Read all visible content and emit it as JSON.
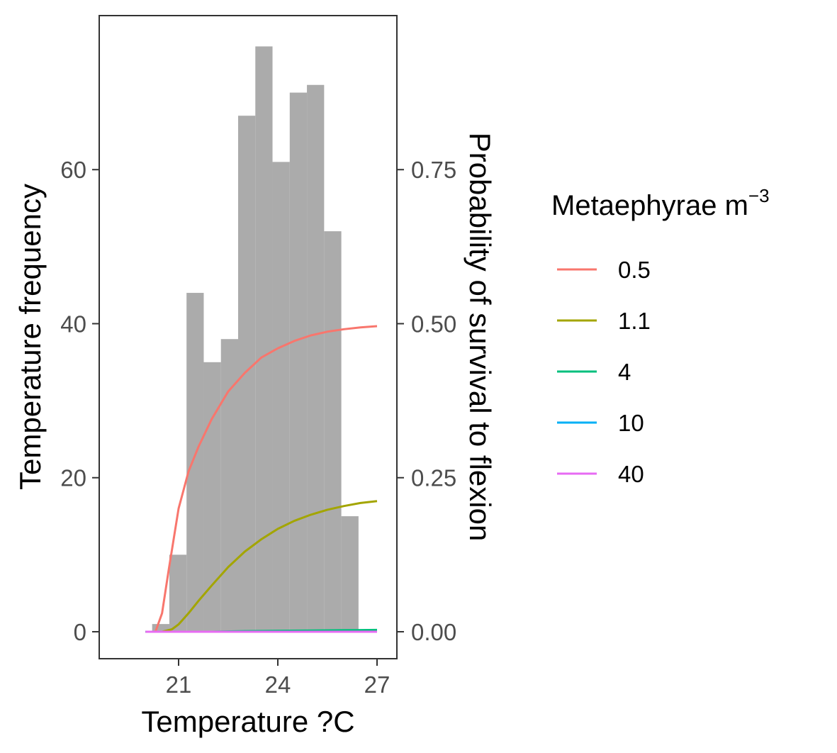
{
  "chart_data": {
    "type": "bar",
    "xlabel": "Temperature ?C",
    "ylabel_left": "Temperature frequency",
    "ylabel_right": "Probability of survival to flexion",
    "xlim": [
      18.6,
      27.6
    ],
    "ylim_left": [
      -3.5,
      80
    ],
    "ylim_right": [
      -0.04375,
      1.0
    ],
    "x_ticks": [
      21,
      24,
      27
    ],
    "x_tick_labels": [
      "21",
      "24",
      "27"
    ],
    "y_left_ticks": [
      0,
      20,
      40,
      60
    ],
    "y_left_tick_labels": [
      "0",
      "20",
      "40",
      "60"
    ],
    "y_right_ticks": [
      0,
      0.25,
      0.5,
      0.75
    ],
    "y_right_tick_labels": [
      "0.00",
      "0.25",
      "0.50",
      "0.75"
    ],
    "grid": false,
    "histogram": {
      "color": "#ababab",
      "bin_width": 0.52,
      "bins": [
        {
          "x": 20.46,
          "count": 1
        },
        {
          "x": 20.98,
          "count": 10
        },
        {
          "x": 21.5,
          "count": 44
        },
        {
          "x": 22.02,
          "count": 35
        },
        {
          "x": 22.54,
          "count": 38
        },
        {
          "x": 23.06,
          "count": 67
        },
        {
          "x": 23.58,
          "count": 76
        },
        {
          "x": 24.1,
          "count": 61
        },
        {
          "x": 24.62,
          "count": 70
        },
        {
          "x": 25.14,
          "count": 71
        },
        {
          "x": 25.66,
          "count": 52
        },
        {
          "x": 26.18,
          "count": 15
        }
      ]
    },
    "legend": {
      "title_main": "Metaephyrae m",
      "title_sup": "−3",
      "placement": "right"
    },
    "series": [
      {
        "name": "0.5",
        "color": "#f8766d",
        "x": [
          20.0,
          20.3,
          20.5,
          20.7,
          21.0,
          21.3,
          21.6,
          22.0,
          22.5,
          23.0,
          23.5,
          24.0,
          24.5,
          25.0,
          25.5,
          26.0,
          26.5,
          27.0
        ],
        "y": [
          0.0,
          0.0,
          0.03,
          0.1,
          0.2,
          0.26,
          0.3,
          0.345,
          0.39,
          0.42,
          0.445,
          0.46,
          0.472,
          0.481,
          0.487,
          0.491,
          0.494,
          0.496
        ]
      },
      {
        "name": "1.1",
        "color": "#a3a500",
        "x": [
          20.0,
          20.5,
          20.8,
          21.0,
          21.3,
          21.6,
          22.0,
          22.5,
          23.0,
          23.5,
          24.0,
          24.5,
          25.0,
          25.5,
          26.0,
          26.5,
          27.0
        ],
        "y": [
          0.0,
          0.0,
          0.004,
          0.012,
          0.03,
          0.05,
          0.075,
          0.105,
          0.13,
          0.15,
          0.167,
          0.18,
          0.19,
          0.198,
          0.204,
          0.209,
          0.212
        ]
      },
      {
        "name": "4",
        "color": "#00bf7d",
        "x": [
          20.0,
          22.0,
          23.0,
          24.0,
          25.0,
          26.0,
          27.0
        ],
        "y": [
          0.0,
          0.0,
          0.001,
          0.0015,
          0.002,
          0.0025,
          0.003
        ]
      },
      {
        "name": "10",
        "color": "#00b0f6",
        "x": [
          20.0,
          27.0
        ],
        "y": [
          0.0,
          0.0
        ]
      },
      {
        "name": "40",
        "color": "#e76bf3",
        "x": [
          20.0,
          27.0
        ],
        "y": [
          0.0,
          0.0
        ]
      }
    ]
  }
}
